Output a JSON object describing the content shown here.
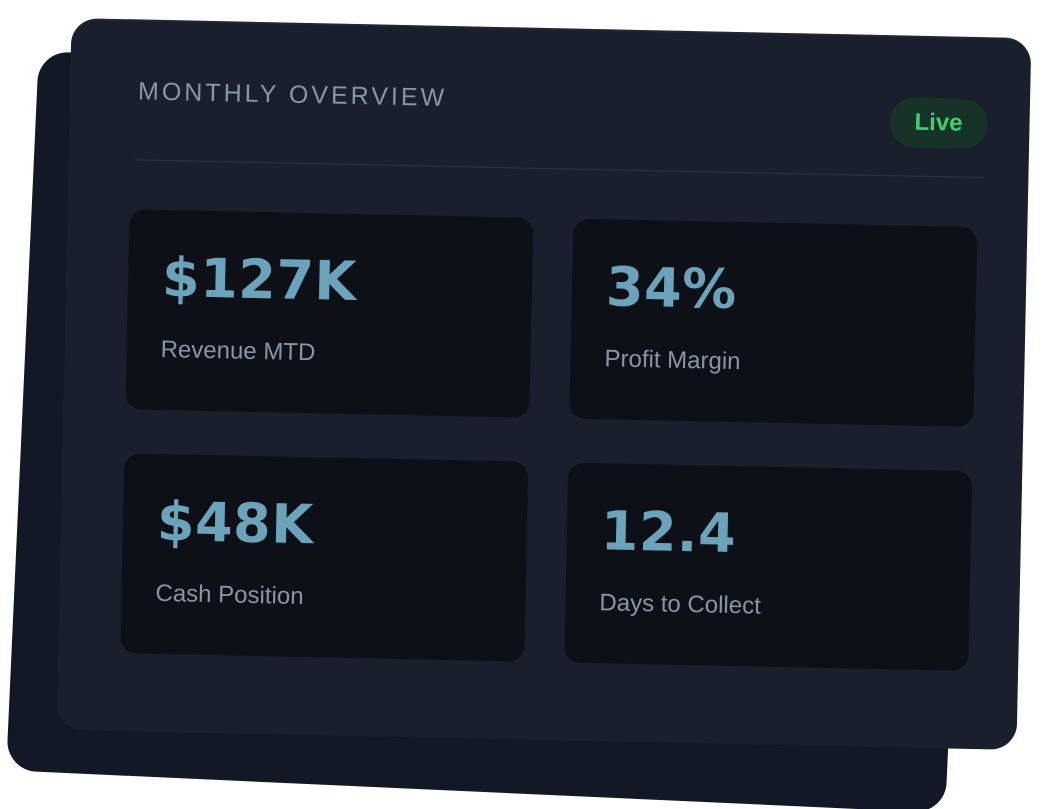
{
  "card": {
    "title": "MONTHLY OVERVIEW",
    "status_badge": "Live"
  },
  "metrics": [
    {
      "value": "$127K",
      "label": "Revenue MTD"
    },
    {
      "value": "34%",
      "label": "Profit Margin"
    },
    {
      "value": "$48K",
      "label": "Cash Position"
    },
    {
      "value": "12.4",
      "label": "Days to Collect"
    }
  ],
  "colors": {
    "card_background": "#1a1f2e",
    "back_card_background": "#121826",
    "tile_background": "#0d1017",
    "value_accent": "#6ba3bb",
    "label_text": "#8a94a8",
    "live_text": "#3ecf6e",
    "live_background": "#173226"
  }
}
